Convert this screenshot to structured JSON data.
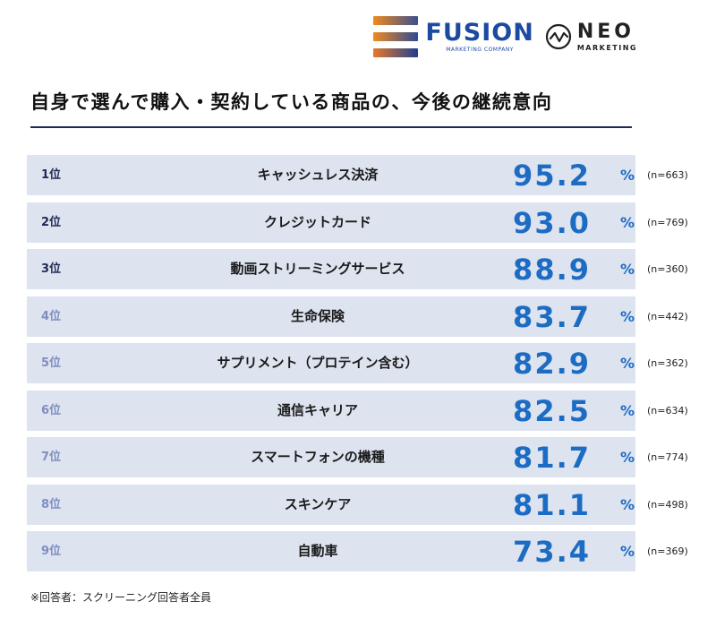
{
  "logos": {
    "fusion_word": "FUSION",
    "fusion_sub": "MARKETING COMPANY",
    "neo_word": "NEO",
    "neo_sub": "MARKETING"
  },
  "title": "自身で選んで購入・契約している商品の、今後の継続意向",
  "chart_data": {
    "type": "table",
    "title": "自身で選んで購入・契約している商品の、今後の継続意向",
    "unit": "%",
    "rows": [
      {
        "rank": "1位",
        "item": "キャッシュレス決済",
        "value": 95.2,
        "n": "(n=663)"
      },
      {
        "rank": "2位",
        "item": "クレジットカード",
        "value": 93.0,
        "n": "(n=769)"
      },
      {
        "rank": "3位",
        "item": "動画ストリーミングサービス",
        "value": 88.9,
        "n": "(n=360)"
      },
      {
        "rank": "4位",
        "item": "生命保険",
        "value": 83.7,
        "n": "(n=442)"
      },
      {
        "rank": "5位",
        "item": "サプリメント（プロテイン含む）",
        "value": 82.9,
        "n": "(n=362)"
      },
      {
        "rank": "6位",
        "item": "通信キャリア",
        "value": 82.5,
        "n": "(n=634)"
      },
      {
        "rank": "7位",
        "item": "スマートフォンの機種",
        "value": 81.7,
        "n": "(n=774)"
      },
      {
        "rank": "8位",
        "item": "スキンケア",
        "value": 81.1,
        "n": "(n=498)"
      },
      {
        "rank": "9位",
        "item": "自動車",
        "value": 73.4,
        "n": "(n=369)"
      }
    ]
  },
  "footnote": "※回答者：スクリーニング回答者全員",
  "colors": {
    "row_bg": "#dde3ef",
    "value": "#1d6cc4",
    "rank_dark": "#1f2a55",
    "rank_light": "#7f8fc0",
    "rule": "#1e2a55"
  }
}
